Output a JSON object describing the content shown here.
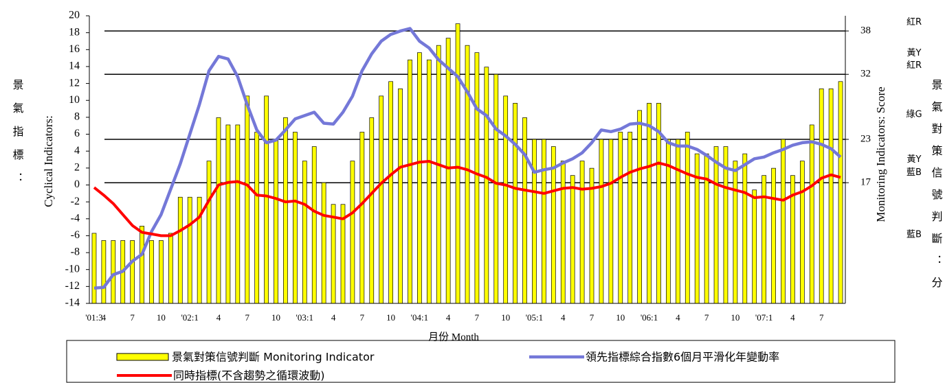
{
  "chart_data": {
    "type": "bar",
    "x_label": "月份 Month",
    "y_label": "Cyclical Indicators:",
    "y_label_cn": "景氣指標：",
    "y2_label": "Monitoring Indicators: Score",
    "y2_label_cn": "景氣對策信號判斷：分",
    "signal_labels": [
      {
        "label": "紅R",
        "value": 39.2
      },
      {
        "label": "黃Y",
        "value": 34.9
      },
      {
        "label": "紅R",
        "value": 33.2
      },
      {
        "label": "綠G",
        "value": 26.4
      },
      {
        "label": "黃Y",
        "value": 20.2
      },
      {
        "label": "藍B",
        "value": 18.4
      },
      {
        "label": "藍B",
        "value": 9.8
      }
    ],
    "categories": [
      "'01:3",
      "4",
      null,
      null,
      "7",
      null,
      null,
      "10",
      null,
      null,
      "'02:1",
      null,
      null,
      "4",
      null,
      null,
      "7",
      null,
      null,
      "10",
      null,
      null,
      "'03:1",
      null,
      null,
      "4",
      null,
      null,
      "7",
      null,
      null,
      "10",
      null,
      null,
      "'04:1",
      null,
      null,
      "4",
      null,
      null,
      "7",
      null,
      null,
      "10",
      null,
      null,
      "'05:1",
      null,
      null,
      "4",
      null,
      null,
      "7",
      null,
      null,
      "10",
      null,
      null,
      "'06:1",
      null,
      null,
      "4",
      null,
      null,
      "7",
      null,
      null,
      "10",
      null,
      null,
      "'07:1",
      null,
      null,
      "4",
      null,
      null,
      "7",
      null,
      null
    ],
    "series": [
      {
        "name": "景氣對策信號判斷 Monitoring Indicator",
        "color": "#ffff00",
        "axis": "y2",
        "type": "bar",
        "values": [
          10,
          9,
          9,
          9,
          9,
          11,
          9,
          9,
          10,
          15,
          15,
          15,
          20,
          26,
          25,
          25,
          29,
          24,
          29,
          23,
          26,
          24,
          20,
          22,
          17,
          14,
          14,
          20,
          24,
          26,
          29,
          31,
          30,
          34,
          35,
          34,
          36,
          37,
          39,
          36,
          35,
          33,
          32,
          29,
          28,
          26,
          23,
          23,
          22,
          20,
          18,
          20,
          19,
          23,
          23,
          24,
          24,
          27,
          28,
          28,
          23,
          23,
          24,
          21,
          21,
          22,
          22,
          20,
          21,
          16,
          18,
          19,
          23,
          18,
          20,
          25,
          30,
          30,
          31
        ]
      },
      {
        "name": "領先指標綜合指數6個月平滑化年變動率",
        "color": "#7478d8",
        "type": "line",
        "values": [
          -12.2,
          -12.1,
          -10.6,
          -10.2,
          -9,
          -8.2,
          -5.5,
          -3.5,
          -0.5,
          2.5,
          6,
          9.5,
          13.5,
          15.2,
          14.9,
          12.8,
          9.5,
          6.5,
          5,
          5.3,
          6.5,
          7.8,
          8.2,
          8.6,
          7.3,
          7.2,
          8.6,
          10.5,
          13.5,
          15.5,
          17,
          17.8,
          18.2,
          18.5,
          17,
          16.2,
          14.8,
          13.8,
          12.8,
          11,
          9,
          8.2,
          6.6,
          5.8,
          4.8,
          3.6,
          1.5,
          1.8,
          2,
          2.6,
          3.1,
          3.8,
          5,
          6.5,
          6.3,
          6.6,
          7.2,
          7.3,
          7,
          6.3,
          5,
          4.6,
          4.6,
          4.2,
          3.5,
          2.7,
          2,
          1.7,
          2.4,
          3.1,
          3.3,
          3.8,
          4.2,
          4.7,
          5,
          5.1,
          4.8,
          4.3,
          3.3
        ]
      },
      {
        "name": "同時指標(不含趨勢之循環波動)",
        "color": "#ff0000",
        "type": "line",
        "values": [
          -0.3,
          -1.2,
          -2.2,
          -3.5,
          -4.8,
          -5.6,
          -5.8,
          -6,
          -6,
          -5.4,
          -4.7,
          -3.8,
          -1.8,
          0,
          0.3,
          0.4,
          0,
          -1.2,
          -1.3,
          -1.6,
          -2,
          -1.9,
          -2.3,
          -3.1,
          -3.6,
          -3.8,
          -4,
          -3.3,
          -2.2,
          -1,
          0.2,
          1.2,
          2.1,
          2.4,
          2.7,
          2.8,
          2.4,
          2,
          2.1,
          1.8,
          1.3,
          0.9,
          0.2,
          0,
          -0.4,
          -0.6,
          -0.8,
          -1,
          -0.7,
          -0.4,
          -0.3,
          -0.5,
          -0.4,
          -0.2,
          0.2,
          0.9,
          1.5,
          1.9,
          2.2,
          2.6,
          2.3,
          1.8,
          1.3,
          0.9,
          0.7,
          0.1,
          -0.3,
          -0.6,
          -0.9,
          -1.5,
          -1.4,
          -1.6,
          -1.8,
          -1.2,
          -0.8,
          -0.1,
          0.8,
          1.2,
          0.9
        ]
      }
    ],
    "ylim": [
      -14,
      20
    ],
    "yticks": [
      -14,
      -12,
      -10,
      -8,
      -6,
      -4,
      -2,
      0,
      2,
      4,
      6,
      8,
      10,
      12,
      14,
      16,
      18,
      20
    ],
    "y2lim": [
      0.3,
      40.1
    ],
    "y2ticks": [
      17,
      23,
      32,
      38
    ],
    "grid_y2": true
  }
}
